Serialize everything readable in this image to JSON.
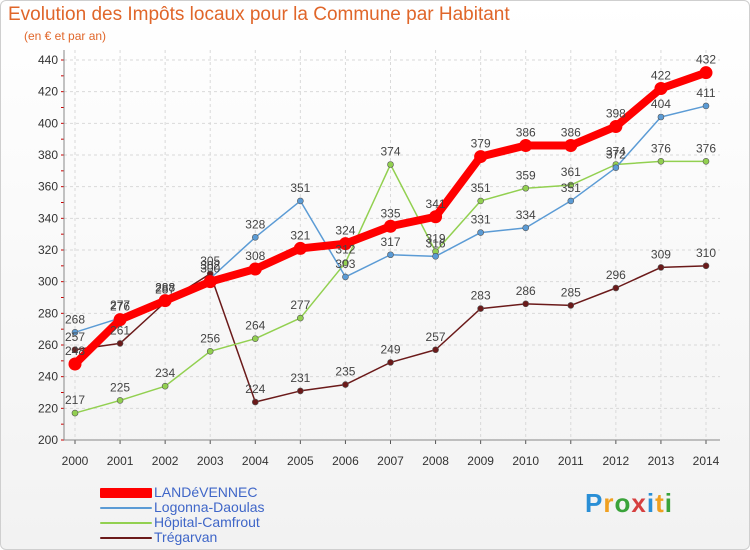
{
  "chart_data": {
    "type": "line",
    "title": "Evolution des Impôts locaux pour la Commune par Habitant",
    "subtitle": "(en € et par an)",
    "xlabel": "",
    "ylabel": "",
    "x": [
      "2000",
      "2001",
      "2002",
      "2003",
      "2004",
      "2005",
      "2006",
      "2007",
      "2008",
      "2009",
      "2010",
      "2011",
      "2012",
      "2013",
      "2014"
    ],
    "y_ticks": [
      200,
      220,
      240,
      260,
      280,
      300,
      320,
      340,
      360,
      380,
      400,
      420,
      440
    ],
    "ylim": [
      200,
      440
    ],
    "grid": true,
    "legend_position": "bottom-left",
    "series": [
      {
        "name": "LANDéVENNEC",
        "color": "#ff0000",
        "values": [
          248,
          276,
          288,
          300,
          308,
          321,
          324,
          335,
          341,
          379,
          386,
          386,
          398,
          422,
          432
        ]
      },
      {
        "name": "Logonna-Daoulas",
        "color": "#5b9bd5",
        "values": [
          268,
          277,
          288,
          302,
          328,
          351,
          303,
          317,
          316,
          331,
          334,
          351,
          372,
          404,
          411
        ]
      },
      {
        "name": "Hôpital-Camfrout",
        "color": "#92d050",
        "values": [
          217,
          225,
          234,
          256,
          264,
          277,
          312,
          374,
          319,
          351,
          359,
          361,
          374,
          376,
          376
        ]
      },
      {
        "name": "Trégarvan",
        "color": "#6b1a1a",
        "values": [
          257,
          261,
          287,
          305,
          224,
          231,
          235,
          249,
          257,
          283,
          286,
          285,
          296,
          309,
          310
        ]
      }
    ]
  },
  "logo": {
    "letters": [
      "P",
      "r",
      "o",
      "x",
      "i",
      "t",
      "i"
    ],
    "colors": [
      "#2a8fd6",
      "#f0a020",
      "#3aa33a",
      "#d64040",
      "#2a8fd6",
      "#f0a020",
      "#3aa33a"
    ]
  }
}
